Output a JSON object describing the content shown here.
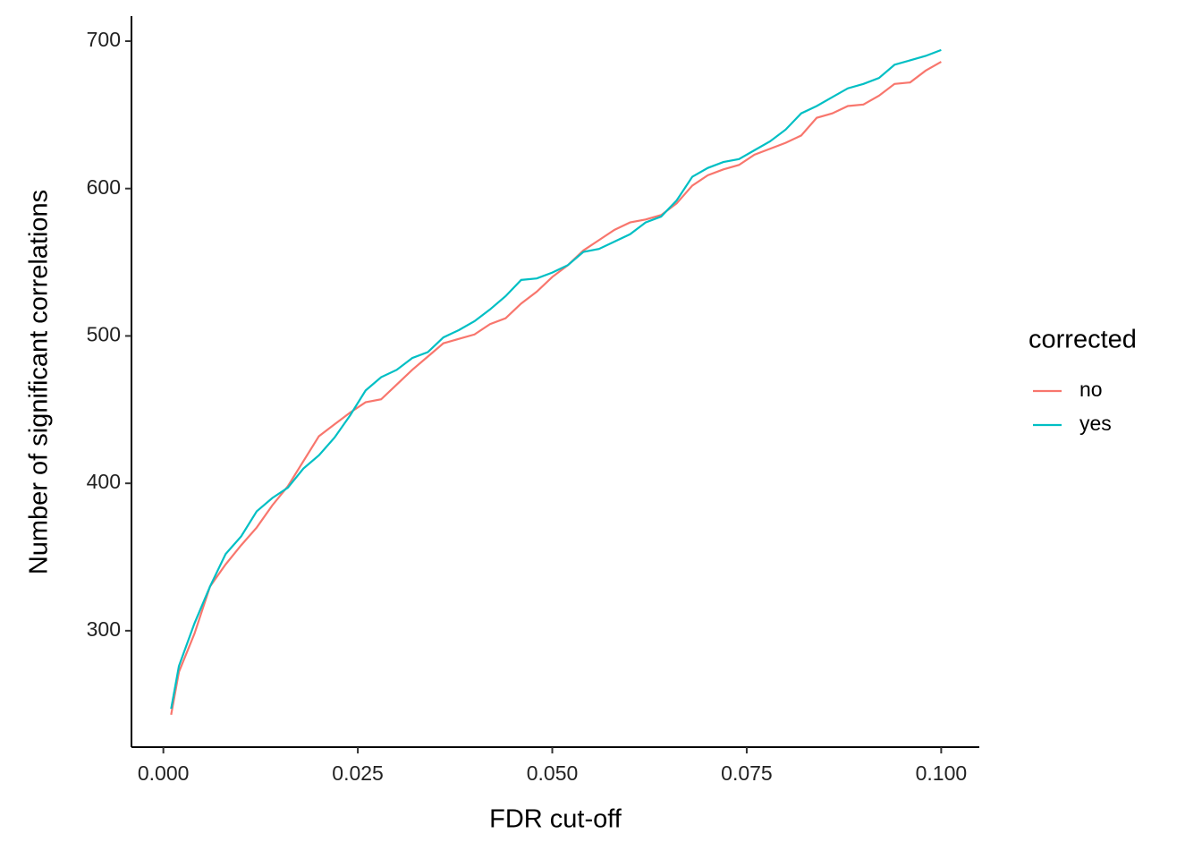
{
  "chart_data": {
    "type": "line",
    "x_label": "FDR cut-off",
    "y_label": "Number of significant correlations",
    "legend_title": "corrected",
    "legend_position": "right",
    "grid": false,
    "x": [
      0.001,
      0.002,
      0.004,
      0.006,
      0.008,
      0.01,
      0.012,
      0.014,
      0.016,
      0.018,
      0.02,
      0.022,
      0.024,
      0.026,
      0.028,
      0.03,
      0.032,
      0.034,
      0.036,
      0.038,
      0.04,
      0.042,
      0.044,
      0.046,
      0.048,
      0.05,
      0.052,
      0.054,
      0.056,
      0.058,
      0.06,
      0.062,
      0.064,
      0.066,
      0.068,
      0.07,
      0.072,
      0.074,
      0.076,
      0.078,
      0.08,
      0.082,
      0.084,
      0.086,
      0.088,
      0.09,
      0.092,
      0.094,
      0.096,
      0.098,
      0.1
    ],
    "series": [
      {
        "name": "no",
        "color": "#F8766D",
        "values": [
          243,
          272,
          298,
          330,
          345,
          358,
          370,
          385,
          398,
          415,
          432,
          440,
          448,
          455,
          457,
          467,
          477,
          486,
          495,
          498,
          501,
          508,
          512,
          522,
          530,
          540,
          548,
          558,
          565,
          572,
          577,
          579,
          582,
          590,
          602,
          609,
          613,
          616,
          623,
          627,
          631,
          636,
          648,
          651,
          656,
          657,
          663,
          671,
          672,
          680,
          686
        ]
      },
      {
        "name": "yes",
        "color": "#00BFC4",
        "values": [
          247,
          276,
          305,
          330,
          352,
          364,
          381,
          390,
          397,
          410,
          419,
          431,
          446,
          463,
          472,
          477,
          485,
          489,
          499,
          504,
          510,
          518,
          527,
          538,
          539,
          543,
          548,
          557,
          559,
          564,
          569,
          577,
          581,
          592,
          608,
          614,
          618,
          620,
          626,
          632,
          640,
          651,
          656,
          662,
          668,
          671,
          675,
          684,
          687,
          690,
          694
        ]
      }
    ],
    "xlim": [
      -0.0041,
      0.1049
    ],
    "ylim": [
      221,
      717
    ],
    "xticks": [
      {
        "value": 0,
        "label": "0.000"
      },
      {
        "value": 0.025,
        "label": "0.025"
      },
      {
        "value": 0.05,
        "label": "0.050"
      },
      {
        "value": 0.075,
        "label": "0.075"
      },
      {
        "value": 0.1,
        "label": "0.100"
      }
    ],
    "yticks": [
      300,
      400,
      500,
      600,
      700
    ]
  }
}
